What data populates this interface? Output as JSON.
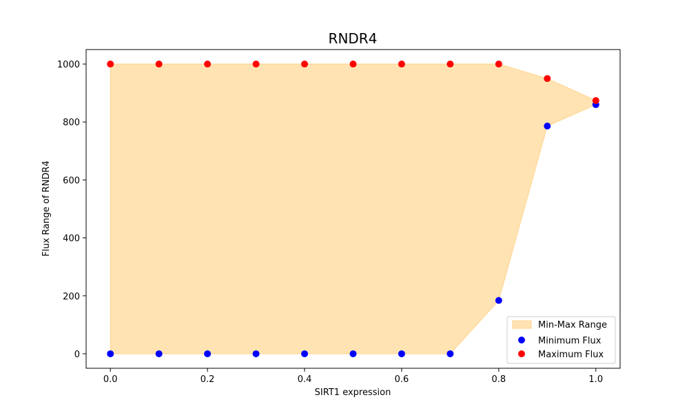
{
  "chart_data": {
    "type": "scatter",
    "title": "RNDR4",
    "xlabel": "SIRT1 expression",
    "ylabel": "Flux Range of RNDR4",
    "xlim": [
      -0.05,
      1.05
    ],
    "ylim": [
      -50,
      1050
    ],
    "xticks": [
      0.0,
      0.2,
      0.4,
      0.6,
      0.8,
      1.0
    ],
    "xtick_labels": [
      "0.0",
      "0.2",
      "0.4",
      "0.6",
      "0.8",
      "1.0"
    ],
    "yticks": [
      0,
      200,
      400,
      600,
      800,
      1000
    ],
    "ytick_labels": [
      "0",
      "200",
      "400",
      "600",
      "800",
      "1000"
    ],
    "grid": false,
    "legend_position": "lower-right",
    "x": [
      0.0,
      0.1,
      0.2,
      0.3,
      0.4,
      0.5,
      0.6,
      0.7,
      0.8,
      0.9,
      1.0
    ],
    "fill": {
      "name": "Min-Max Range",
      "color": "#ffe3b3",
      "edge_color": "#ffd58c"
    },
    "series": [
      {
        "name": "Minimum Flux",
        "color": "#0000ff",
        "values": [
          0,
          0,
          0,
          0,
          0,
          0,
          0,
          0,
          184,
          786,
          860
        ]
      },
      {
        "name": "Maximum Flux",
        "color": "#ff0000",
        "values": [
          1000,
          1000,
          1000,
          1000,
          1000,
          1000,
          1000,
          1000,
          1000,
          950,
          874
        ]
      }
    ]
  }
}
